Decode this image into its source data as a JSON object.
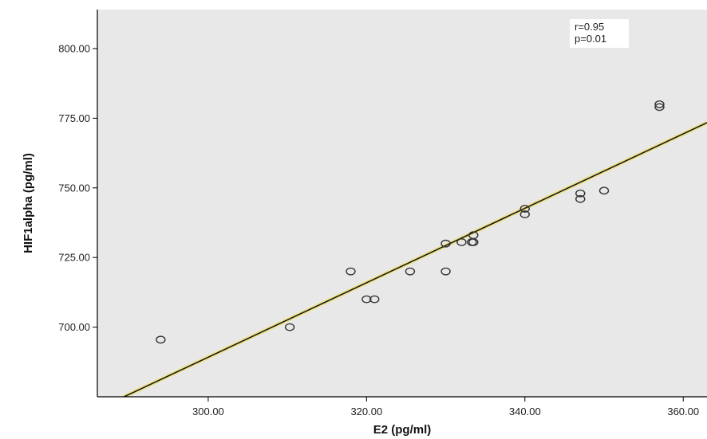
{
  "chart_data": {
    "type": "scatter",
    "xlabel": "E2 (pg/ml)",
    "ylabel": "HIF1alpha (pg/ml)",
    "xlim": [
      286,
      363
    ],
    "ylim": [
      675,
      814
    ],
    "x_ticks": [
      300,
      320,
      340,
      360
    ],
    "x_tick_labels": [
      "300.00",
      "320.00",
      "340.00",
      "360.00"
    ],
    "y_ticks": [
      700,
      725,
      750,
      775,
      800
    ],
    "y_tick_labels": [
      "700.00",
      "725.00",
      "750.00",
      "775.00",
      "800.00"
    ],
    "grid": false,
    "marker": "open-circle",
    "points": [
      {
        "x": 294.0,
        "y": 695.5
      },
      {
        "x": 310.3,
        "y": 700.0
      },
      {
        "x": 318.0,
        "y": 720.0
      },
      {
        "x": 320.0,
        "y": 710.0
      },
      {
        "x": 321.0,
        "y": 710.0
      },
      {
        "x": 325.5,
        "y": 720.0
      },
      {
        "x": 330.0,
        "y": 720.0
      },
      {
        "x": 330.0,
        "y": 730.0
      },
      {
        "x": 332.0,
        "y": 730.5
      },
      {
        "x": 333.3,
        "y": 730.5
      },
      {
        "x": 333.5,
        "y": 730.5
      },
      {
        "x": 333.5,
        "y": 733.0
      },
      {
        "x": 340.0,
        "y": 740.5
      },
      {
        "x": 340.0,
        "y": 742.5
      },
      {
        "x": 347.0,
        "y": 746.0
      },
      {
        "x": 347.0,
        "y": 748.0
      },
      {
        "x": 350.0,
        "y": 749.0
      },
      {
        "x": 357.0,
        "y": 779.0
      },
      {
        "x": 357.0,
        "y": 780.0
      }
    ],
    "fit_line": {
      "x": [
        286,
        363
      ],
      "y": [
        670.5,
        773.4
      ]
    },
    "annotation": {
      "lines": [
        "r=0.95",
        "p=0.01"
      ],
      "placement": "top-right"
    },
    "colors": {
      "plot_background": "#e8e8e8",
      "marker_stroke": "#333333",
      "fit_line": "#1a1a1a",
      "fit_line_halo": "#efe28a"
    }
  }
}
